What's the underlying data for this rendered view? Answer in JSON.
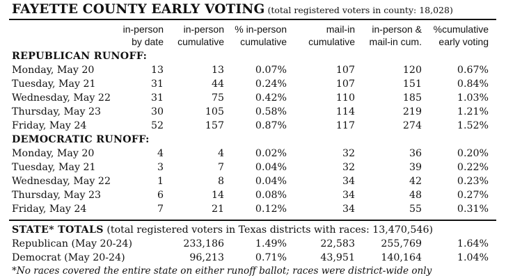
{
  "title": "FAYETTE COUNTY EARLY VOTING",
  "title_note": "(total registered voters in county: 18,028)",
  "headers": {
    "h1": [
      "in-person",
      "by date"
    ],
    "h2": [
      "in-person",
      "cumulative"
    ],
    "h3": [
      "% in-person",
      "cumulative"
    ],
    "h4": [
      "mail-in",
      "cumulative"
    ],
    "h5": [
      "in-person &",
      "mail-in cum."
    ],
    "h6": [
      "%cumulative",
      "early voting"
    ]
  },
  "republican": {
    "heading": "REPUBLICAN RUNOFF:",
    "rows": [
      [
        "Monday, May 20",
        "13",
        "13",
        "0.07%",
        "107",
        "120",
        "0.67%"
      ],
      [
        "Tuesday, May 21",
        "31",
        "44",
        "0.24%",
        "107",
        "151",
        "0.84%"
      ],
      [
        "Wednesday, May 22",
        "31",
        "75",
        "0.42%",
        "110",
        "185",
        "1.03%"
      ],
      [
        "Thursday, May 23",
        "30",
        "105",
        "0.58%",
        "114",
        "219",
        "1.21%"
      ],
      [
        "Friday, May 24",
        "52",
        "157",
        "0.87%",
        "117",
        "274",
        "1.52%"
      ]
    ]
  },
  "democratic": {
    "heading": "DEMOCRATIC RUNOFF:",
    "rows": [
      [
        "Monday, May 20",
        "4",
        "4",
        "0.02%",
        "32",
        "36",
        "0.20%"
      ],
      [
        "Tuesday, May 21",
        "3",
        "7",
        "0.04%",
        "32",
        "39",
        "0.22%"
      ],
      [
        "Wednesday, May 22",
        "1",
        "8",
        "0.04%",
        "34",
        "42",
        "0.23%"
      ],
      [
        "Thursday, May 23",
        "6",
        "14",
        "0.08%",
        "34",
        "48",
        "0.27%"
      ],
      [
        "Friday, May 24",
        "7",
        "21",
        "0.12%",
        "34",
        "55",
        "0.31%"
      ]
    ]
  },
  "state": {
    "heading": "STATE* TOTALS",
    "note": "(total registered voters in Texas districts with races: 13,470,546)",
    "rows": [
      [
        "Republican (May 20-24)",
        "233,186",
        "1.49%",
        "22,583",
        "255,769",
        "1.64%"
      ],
      [
        "Democrat (May 20-24)",
        "96,213",
        "0.71%",
        "43,951",
        "140,164",
        "1.04%"
      ]
    ]
  },
  "footnote": "*No races covered the entire state on either runoff ballot; races were district-wide only"
}
